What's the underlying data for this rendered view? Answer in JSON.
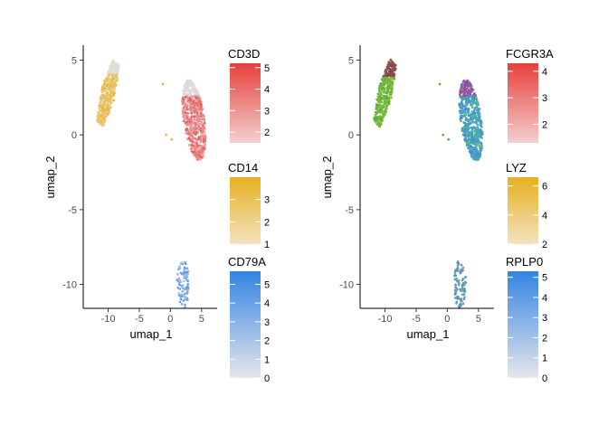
{
  "chart_data": [
    {
      "type": "scatter",
      "xlabel": "umap_1",
      "ylabel": "umap_2",
      "xlim": [
        -14,
        7.5
      ],
      "ylim": [
        -11.6,
        6.0
      ],
      "x_ticks": [
        "-10",
        "-5",
        "0",
        "5"
      ],
      "y_ticks": [
        "5",
        "0",
        "-5",
        "-10"
      ],
      "clusters": [
        {
          "name": "top-left",
          "cx": -10.0,
          "cy": 2.6,
          "n": 420
        },
        {
          "name": "right",
          "cx": 3.8,
          "cy": 1.0,
          "n": 650
        },
        {
          "name": "bottom",
          "cx": 2.0,
          "cy": -10.0,
          "n": 90
        }
      ],
      "legends": [
        {
          "title": "CD3D",
          "ticks": [
            "5",
            "4",
            "3",
            "2"
          ],
          "tick_values": [
            5,
            4,
            3,
            2
          ],
          "range": [
            1.5,
            5.2
          ],
          "low_color": "#f2cfcf",
          "high_color": "#e8403a"
        },
        {
          "title": "CD14",
          "ticks": [
            "3",
            "2",
            "1"
          ],
          "tick_values": [
            3,
            2,
            1
          ],
          "range": [
            1.0,
            4.0
          ],
          "low_color": "#f2e2c0",
          "high_color": "#e8b020"
        },
        {
          "title": "CD79A",
          "ticks": [
            "5",
            "4",
            "3",
            "2",
            "1",
            "0"
          ],
          "tick_values": [
            5,
            4,
            3,
            2,
            1,
            0
          ],
          "range": [
            0,
            5.7
          ],
          "low_color": "#e6e6ec",
          "high_color": "#3384e3"
        }
      ]
    },
    {
      "type": "scatter",
      "xlabel": "umap_1",
      "ylabel": "umap_2",
      "xlim": [
        -14,
        7.5
      ],
      "ylim": [
        -11.6,
        6.0
      ],
      "x_ticks": [
        "-10",
        "-5",
        "0",
        "5"
      ],
      "y_ticks": [
        "5",
        "0",
        "-5",
        "-10"
      ],
      "clusters": [
        {
          "name": "top-left",
          "cx": -10.0,
          "cy": 2.6,
          "n": 420
        },
        {
          "name": "right",
          "cx": 3.8,
          "cy": 1.0,
          "n": 650
        },
        {
          "name": "bottom",
          "cx": 2.0,
          "cy": -10.0,
          "n": 90
        }
      ],
      "legends": [
        {
          "title": "FCGR3A",
          "ticks": [
            "4",
            "3",
            "2"
          ],
          "tick_values": [
            4,
            3,
            2
          ],
          "range": [
            1.3,
            4.3
          ],
          "low_color": "#f2cfcf",
          "high_color": "#e8403a"
        },
        {
          "title": "LYZ",
          "ticks": [
            "6",
            "4",
            "2"
          ],
          "tick_values": [
            6,
            4,
            2
          ],
          "range": [
            2.0,
            6.6
          ],
          "low_color": "#f2e2c0",
          "high_color": "#e8b020"
        },
        {
          "title": "RPLP0",
          "ticks": [
            "5",
            "4",
            "3",
            "2",
            "1",
            "0"
          ],
          "tick_values": [
            5,
            4,
            3,
            2,
            1,
            0
          ],
          "range": [
            0,
            5.3
          ],
          "low_color": "#e6e6ec",
          "high_color": "#3384e3"
        }
      ]
    }
  ]
}
